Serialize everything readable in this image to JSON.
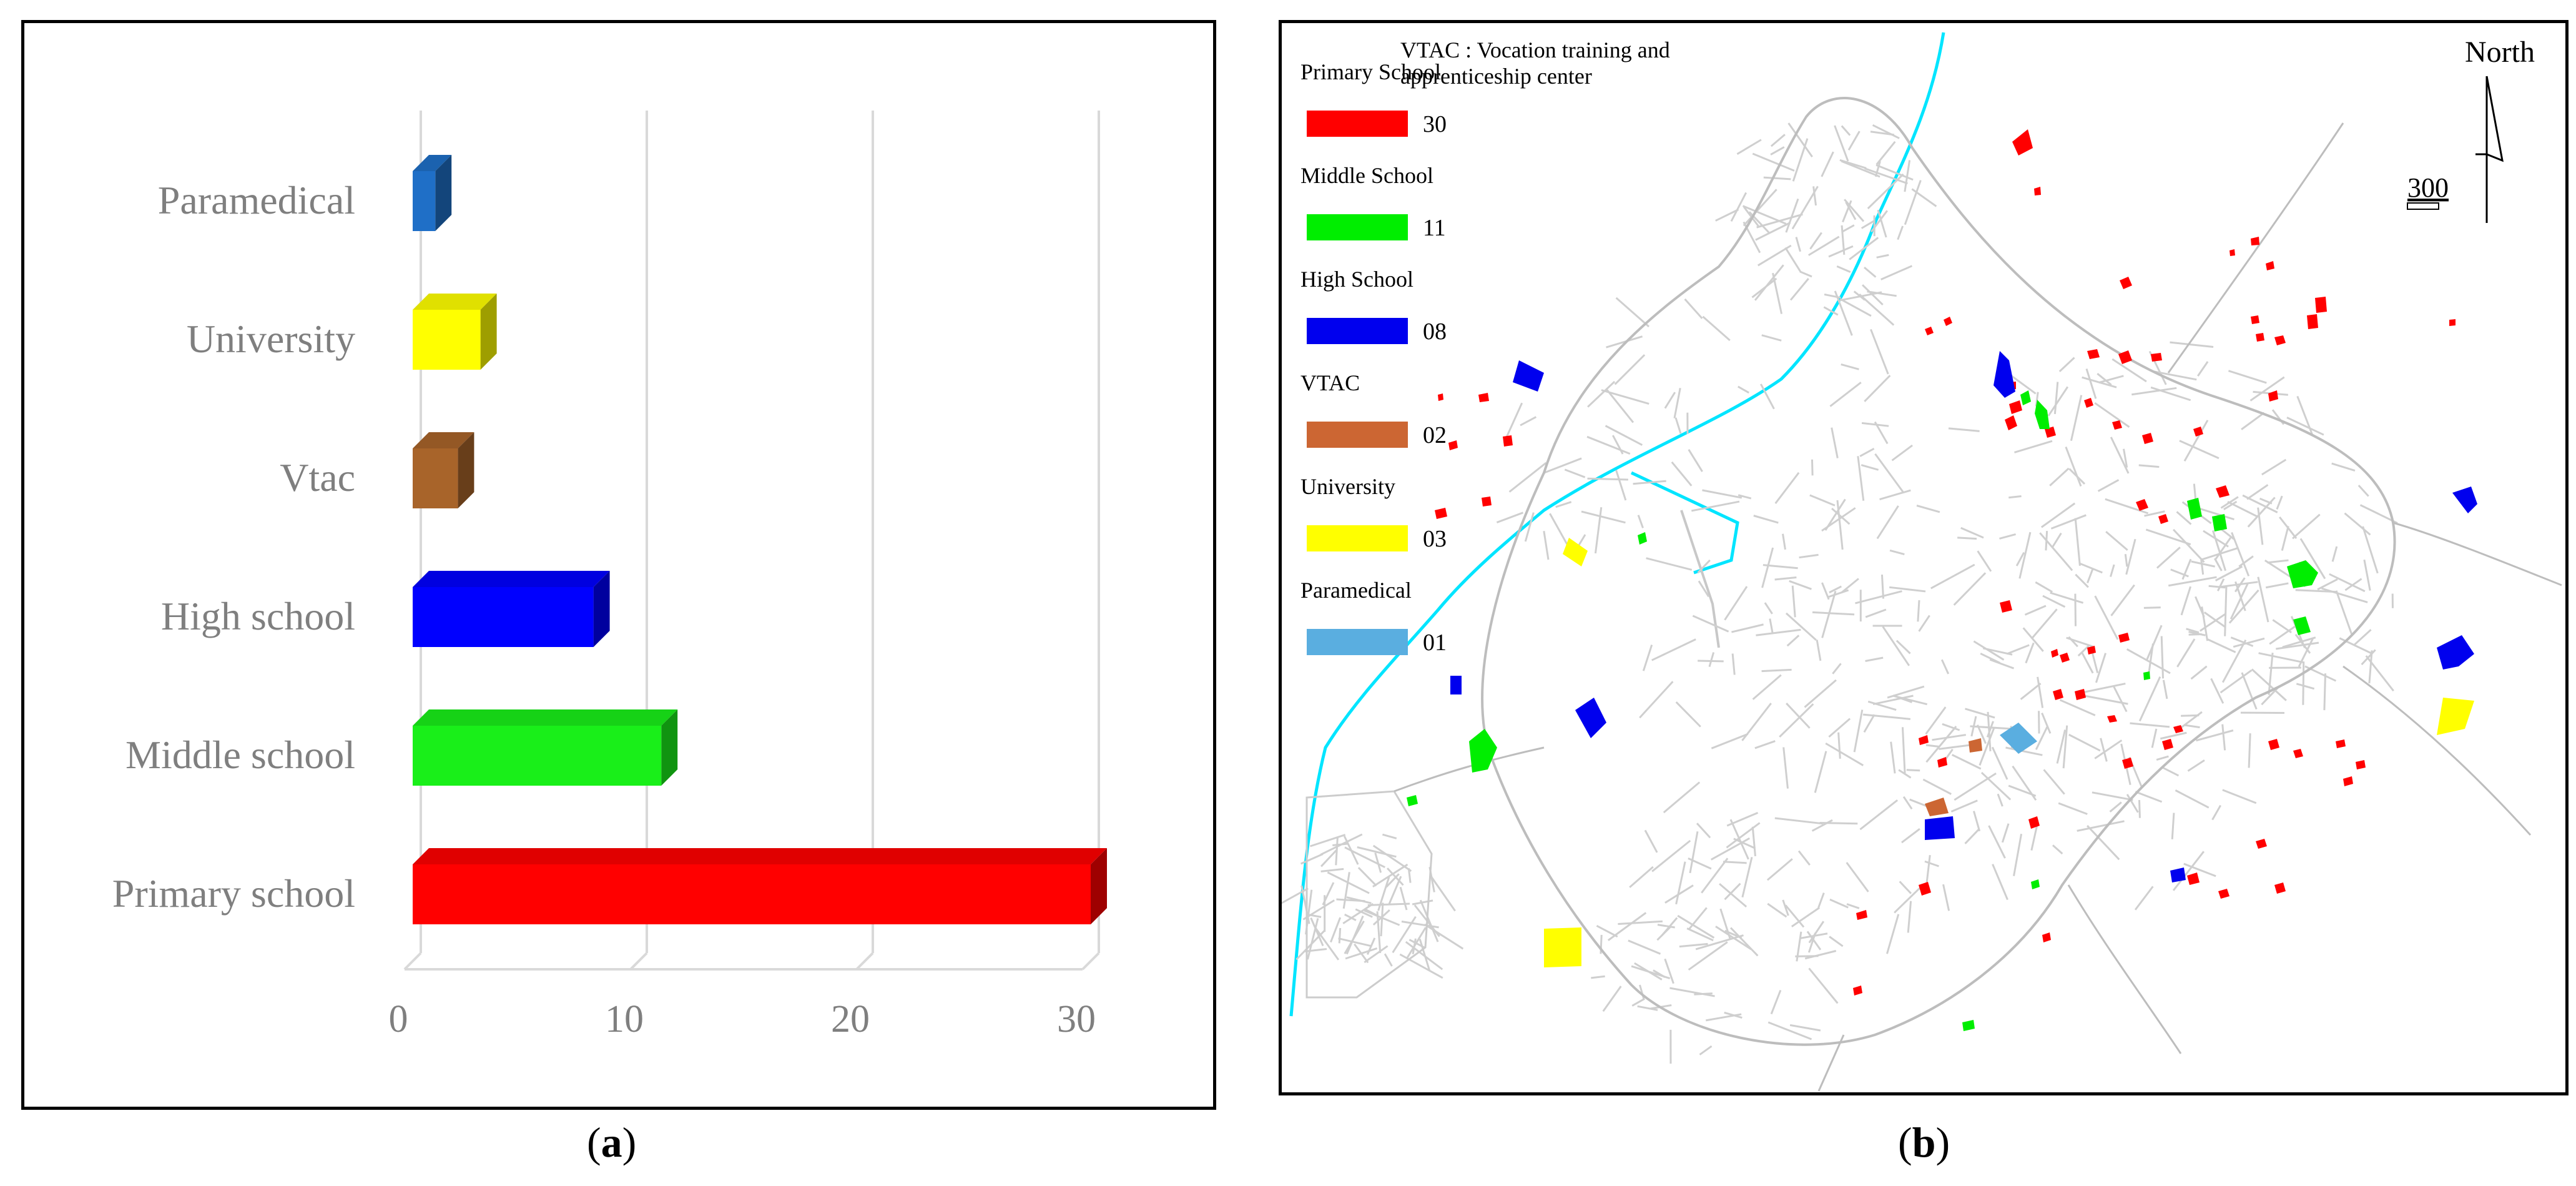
{
  "captions": {
    "a": "a",
    "b": "b",
    "open": "(",
    "close": ")"
  },
  "chart_data": {
    "type": "bar",
    "orientation": "horizontal",
    "style": "3d",
    "categories": [
      "Paramedical",
      "University",
      "Vtac",
      "High school",
      "Middle school",
      "Primary school"
    ],
    "values": [
      1,
      3,
      2,
      8,
      11,
      30
    ],
    "colors": [
      "#1f6fc7",
      "#ffff00",
      "#a8642a",
      "#0000ff",
      "#19ef19",
      "#ff0000"
    ],
    "xticks": [
      "0",
      "10",
      "20",
      "30"
    ],
    "xlim": [
      0,
      30
    ],
    "grid": true,
    "title": "",
    "xlabel": "",
    "ylabel": ""
  },
  "map": {
    "legend_items": [
      {
        "label": "Primary School",
        "value": "30",
        "color": "#ff0000"
      },
      {
        "label": "Middle School",
        "value": "11",
        "color": "#00ee00"
      },
      {
        "label": "High School",
        "value": "08",
        "color": "#0000ee"
      },
      {
        "label": "VTAC",
        "value": "02",
        "color": "#cc6633"
      },
      {
        "label": "University",
        "value": "03",
        "color": "#ffff00"
      },
      {
        "label": "Paramedical",
        "value": "01",
        "color": "#5aaee0"
      }
    ],
    "note_line1": "VTAC : Vocation training and",
    "note_line2": "apprenticeship center",
    "north_label": "North",
    "scale_label": "300",
    "sea_color": "#00e5ff",
    "street_color": "#cfcfcf"
  }
}
